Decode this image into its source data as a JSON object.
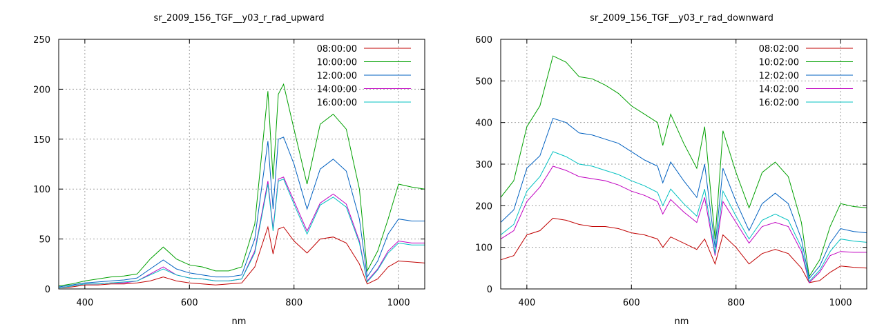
{
  "chart_data": [
    {
      "type": "line",
      "title": "sr_2009_156_TGF__y03_r_rad_upward",
      "xlabel": "nm",
      "ylabel": "",
      "xlim": [
        350,
        1050
      ],
      "ylim": [
        0,
        250
      ],
      "xticks": [
        400,
        600,
        800,
        1000
      ],
      "yticks": [
        0,
        50,
        100,
        150,
        200,
        250
      ],
      "grid": true,
      "legend_position": "top-right",
      "x": [
        350,
        375,
        400,
        425,
        450,
        475,
        500,
        525,
        550,
        575,
        600,
        625,
        650,
        675,
        700,
        725,
        750,
        760,
        770,
        780,
        800,
        825,
        850,
        875,
        900,
        925,
        940,
        960,
        980,
        1000,
        1025,
        1050
      ],
      "series": [
        {
          "name": "08:00:00",
          "color": "#c00000",
          "values": [
            1,
            2,
            4,
            4,
            5,
            5,
            6,
            8,
            12,
            8,
            6,
            5,
            4,
            5,
            6,
            22,
            62,
            35,
            60,
            62,
            48,
            36,
            50,
            52,
            46,
            25,
            5,
            10,
            22,
            28,
            27,
            26
          ]
        },
        {
          "name": "10:00:00",
          "color": "#00a000",
          "values": [
            3,
            5,
            8,
            10,
            12,
            13,
            15,
            30,
            42,
            30,
            24,
            22,
            18,
            18,
            22,
            65,
            198,
            110,
            195,
            205,
            160,
            105,
            165,
            175,
            160,
            100,
            18,
            38,
            70,
            105,
            102,
            100
          ]
        },
        {
          "name": "12:00:00",
          "color": "#0060c0",
          "values": [
            2,
            4,
            6,
            7,
            8,
            9,
            11,
            20,
            29,
            20,
            16,
            14,
            12,
            12,
            14,
            50,
            148,
            80,
            150,
            152,
            125,
            80,
            120,
            130,
            118,
            70,
            12,
            28,
            55,
            70,
            68,
            68
          ]
        },
        {
          "name": "14:00:00",
          "color": "#c000c0",
          "values": [
            1,
            3,
            5,
            5,
            6,
            6,
            8,
            15,
            22,
            14,
            11,
            10,
            8,
            8,
            10,
            38,
            108,
            60,
            110,
            112,
            88,
            58,
            86,
            95,
            85,
            48,
            8,
            20,
            38,
            48,
            46,
            46
          ]
        },
        {
          "name": "16:00:00",
          "color": "#00c0c0",
          "values": [
            1,
            3,
            5,
            5,
            6,
            7,
            8,
            14,
            20,
            14,
            11,
            10,
            8,
            8,
            10,
            36,
            105,
            58,
            108,
            110,
            85,
            55,
            84,
            92,
            82,
            46,
            7,
            19,
            36,
            46,
            44,
            44
          ]
        }
      ]
    },
    {
      "type": "line",
      "title": "sr_2009_156_TGF__y03_r_rad_downward",
      "xlabel": "nm",
      "ylabel": "",
      "xlim": [
        350,
        1050
      ],
      "ylim": [
        0,
        600
      ],
      "xticks": [
        400,
        600,
        800,
        1000
      ],
      "yticks": [
        0,
        100,
        200,
        300,
        400,
        500,
        600
      ],
      "grid": true,
      "legend_position": "top-right",
      "x": [
        350,
        375,
        400,
        425,
        450,
        475,
        500,
        525,
        550,
        575,
        600,
        625,
        650,
        660,
        675,
        700,
        725,
        740,
        760,
        775,
        800,
        825,
        850,
        875,
        900,
        925,
        940,
        960,
        980,
        1000,
        1025,
        1050
      ],
      "series": [
        {
          "name": "08:02:00",
          "color": "#c00000",
          "values": [
            70,
            80,
            130,
            140,
            170,
            165,
            155,
            150,
            150,
            145,
            135,
            130,
            120,
            100,
            125,
            110,
            95,
            120,
            60,
            130,
            100,
            60,
            85,
            95,
            85,
            50,
            15,
            20,
            40,
            55,
            52,
            50
          ]
        },
        {
          "name": "10:02:00",
          "color": "#00a000",
          "values": [
            220,
            260,
            390,
            440,
            560,
            545,
            510,
            505,
            490,
            470,
            440,
            420,
            400,
            345,
            420,
            350,
            290,
            390,
            120,
            380,
            280,
            195,
            280,
            305,
            270,
            160,
            30,
            70,
            150,
            205,
            198,
            195
          ]
        },
        {
          "name": "12:02:00",
          "color": "#0060c0",
          "values": [
            160,
            190,
            290,
            320,
            410,
            400,
            375,
            370,
            360,
            350,
            330,
            310,
            295,
            255,
            305,
            260,
            220,
            300,
            100,
            290,
            210,
            140,
            205,
            230,
            205,
            120,
            25,
            55,
            110,
            145,
            138,
            135
          ]
        },
        {
          "name": "14:02:00",
          "color": "#c000c0",
          "values": [
            120,
            140,
            210,
            245,
            295,
            285,
            270,
            265,
            260,
            250,
            235,
            225,
            210,
            180,
            215,
            185,
            160,
            220,
            80,
            210,
            160,
            110,
            150,
            160,
            150,
            90,
            15,
            40,
            80,
            90,
            88,
            88
          ]
        },
        {
          "name": "16:02:00",
          "color": "#00c0c0",
          "values": [
            130,
            155,
            235,
            270,
            330,
            318,
            300,
            295,
            285,
            275,
            260,
            248,
            232,
            200,
            240,
            205,
            175,
            240,
            85,
            235,
            175,
            120,
            165,
            180,
            165,
            100,
            18,
            45,
            90,
            120,
            115,
            112
          ]
        }
      ]
    }
  ]
}
